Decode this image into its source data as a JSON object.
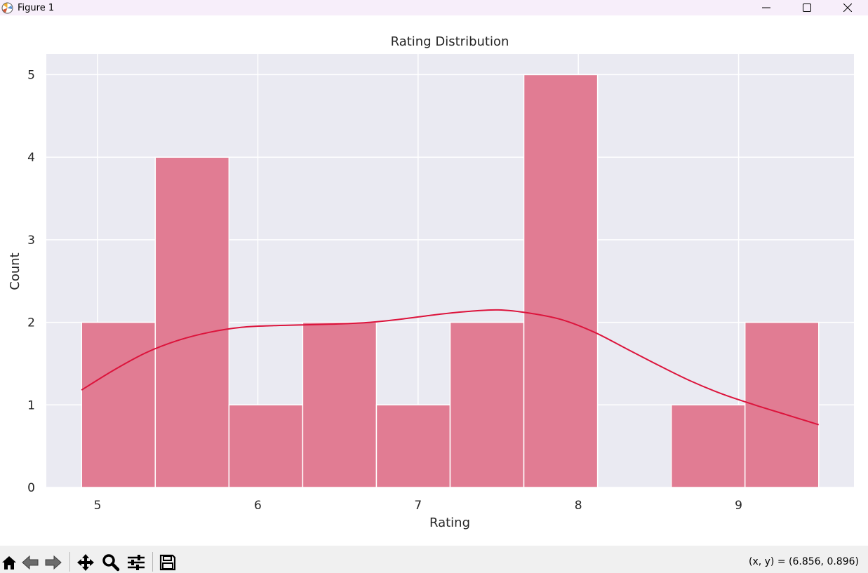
{
  "window": {
    "title": "Figure 1",
    "controls": [
      "minimize-icon",
      "maximize-icon",
      "close-icon"
    ]
  },
  "toolbar": {
    "tools": [
      "home-icon",
      "back-icon",
      "forward-icon",
      "pan-icon",
      "zoom-icon",
      "configure-subplots-icon",
      "save-icon"
    ],
    "coordinates": "(x, y) = (6.856, 0.896)"
  },
  "colors": {
    "axes_background": "#eaeaf2",
    "grid": "#ffffff",
    "bar_fill": "#e17c93",
    "kde_line": "#dc143c",
    "bar_edge": "#ffffff"
  },
  "chart_data": {
    "type": "bar",
    "title": "Rating Distribution",
    "xlabel": "Rating",
    "ylabel": "Count",
    "xlim": [
      4.68,
      9.72
    ],
    "ylim": [
      0,
      5.25
    ],
    "xticks": [
      5,
      6,
      7,
      8,
      9
    ],
    "yticks": [
      0,
      1,
      2,
      3,
      4,
      5
    ],
    "grid": true,
    "bins": [
      {
        "x0": 4.9,
        "x1": 5.36,
        "count": 2
      },
      {
        "x0": 5.36,
        "x1": 5.82,
        "count": 4
      },
      {
        "x0": 5.82,
        "x1": 6.28,
        "count": 1
      },
      {
        "x0": 6.28,
        "x1": 6.74,
        "count": 2
      },
      {
        "x0": 6.74,
        "x1": 7.2,
        "count": 1
      },
      {
        "x0": 7.2,
        "x1": 7.66,
        "count": 2
      },
      {
        "x0": 7.66,
        "x1": 8.12,
        "count": 5
      },
      {
        "x0": 8.12,
        "x1": 8.58,
        "count": 0
      },
      {
        "x0": 8.58,
        "x1": 9.04,
        "count": 1
      },
      {
        "x0": 9.04,
        "x1": 9.5,
        "count": 2
      }
    ],
    "kde": {
      "x": [
        4.9,
        5.1,
        5.3,
        5.5,
        5.7,
        5.9,
        6.1,
        6.3,
        6.5,
        6.7,
        6.9,
        7.1,
        7.3,
        7.5,
        7.7,
        7.9,
        8.1,
        8.3,
        8.5,
        8.7,
        8.9,
        9.1,
        9.3,
        9.5
      ],
      "y": [
        1.18,
        1.42,
        1.63,
        1.78,
        1.88,
        1.94,
        1.96,
        1.97,
        1.98,
        2.0,
        2.04,
        2.09,
        2.13,
        2.15,
        2.11,
        2.03,
        1.88,
        1.68,
        1.48,
        1.29,
        1.13,
        1.0,
        0.88,
        0.76
      ]
    }
  }
}
